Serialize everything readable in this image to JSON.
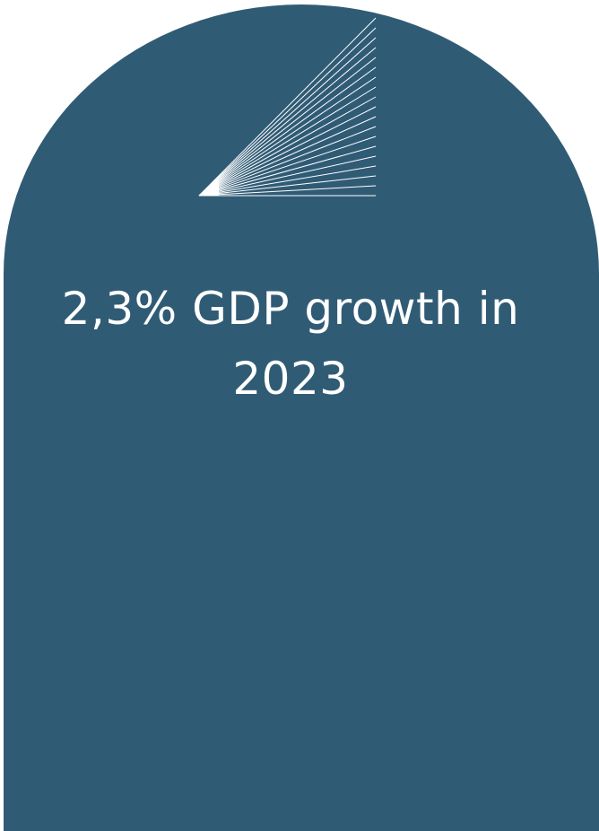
{
  "headline": "2,3% GDP growth in 2023",
  "colors": {
    "background": "#ffffff",
    "card": "#305b75",
    "text": "#ffffff",
    "rays": "#ffffff"
  },
  "icons": {
    "rays": "fan-of-lines-icon"
  }
}
